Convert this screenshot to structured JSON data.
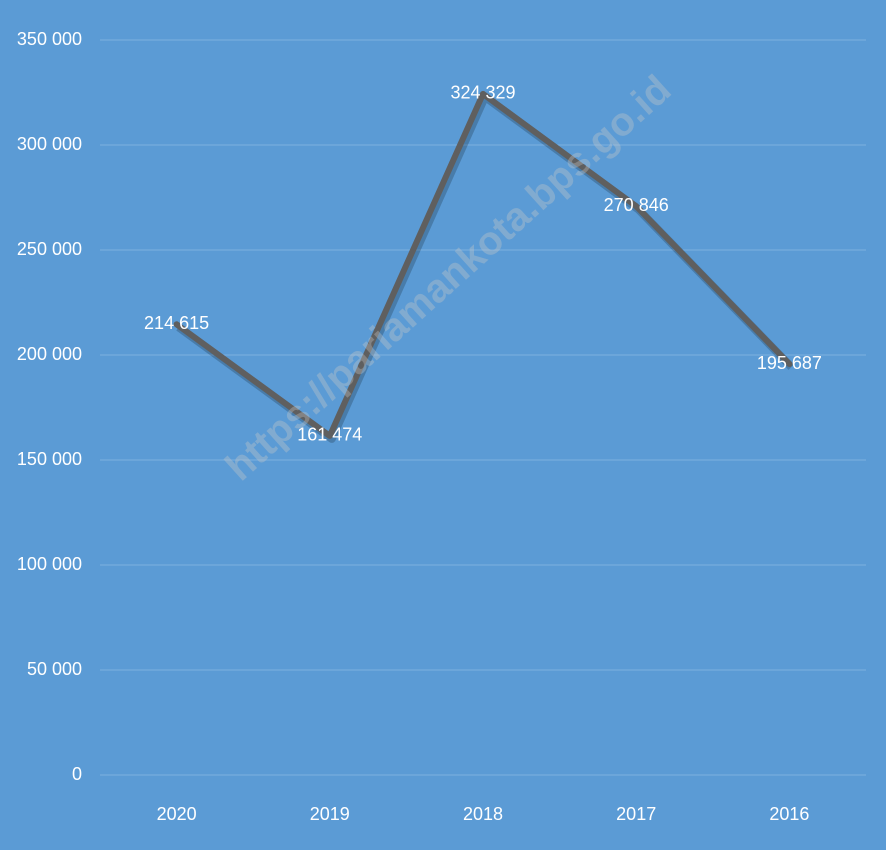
{
  "chart_data": {
    "type": "line",
    "categories": [
      "2020",
      "2019",
      "2018",
      "2017",
      "2016"
    ],
    "series": [
      {
        "color": "#5f5f5f",
        "values": [
          214615,
          161474,
          324329,
          270846,
          195687
        ],
        "value_labels": [
          "214 615",
          "161 474",
          "324 329",
          "270 846",
          "195 687"
        ]
      }
    ],
    "ylim": [
      0,
      350000
    ],
    "yticks": [
      0,
      {
        "value": 50000,
        "label": "50 000"
      },
      {
        "value": 100000,
        "label": "100 000"
      },
      {
        "value": 150000,
        "label": "150 000"
      },
      {
        "value": 200000,
        "label": "200 000"
      },
      {
        "value": 250000,
        "label": "250 000"
      },
      {
        "value": 300000,
        "label": "300 000"
      },
      {
        "value": 350000,
        "label": "350 000"
      }
    ],
    "grid": true,
    "background": "#5b9bd5",
    "watermark": "https://pariamankota.bps.go.id"
  }
}
